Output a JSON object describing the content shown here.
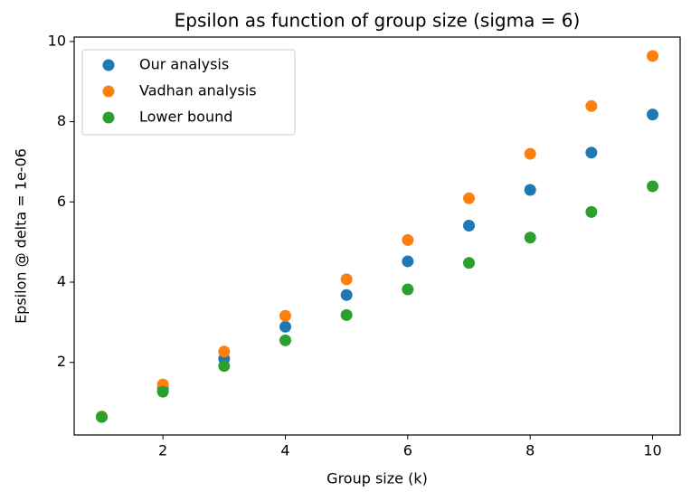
{
  "chart_data": {
    "type": "scatter",
    "title": "Epsilon as function of group size (sigma = 6)",
    "x_label": "Group size (k)",
    "y_label": "Epsilon @ delta = 1e-06",
    "x": [
      1,
      2,
      3,
      4,
      5,
      6,
      7,
      8,
      9,
      10
    ],
    "series": [
      {
        "name": "Our analysis",
        "color": "#1f77b4",
        "values": [
          0.64,
          1.35,
          2.09,
          2.89,
          3.68,
          4.52,
          5.41,
          6.3,
          7.23,
          8.18
        ]
      },
      {
        "name": "Vadhan analysis",
        "color": "#ff7f0e",
        "values": [
          0.65,
          1.45,
          2.27,
          3.16,
          4.07,
          5.05,
          6.09,
          7.2,
          8.39,
          9.64
        ]
      },
      {
        "name": "Lower bound",
        "color": "#2ca02c",
        "values": [
          0.64,
          1.27,
          1.91,
          2.55,
          3.18,
          3.82,
          4.48,
          5.11,
          5.75,
          6.39
        ]
      }
    ],
    "xlim": [
      0.55,
      10.45
    ],
    "xticks": [
      2,
      4,
      6,
      8,
      10
    ],
    "ylim": [
      0.19,
      10.11
    ],
    "yticks": [
      2,
      4,
      6,
      8,
      10
    ],
    "legend": "upper left"
  }
}
